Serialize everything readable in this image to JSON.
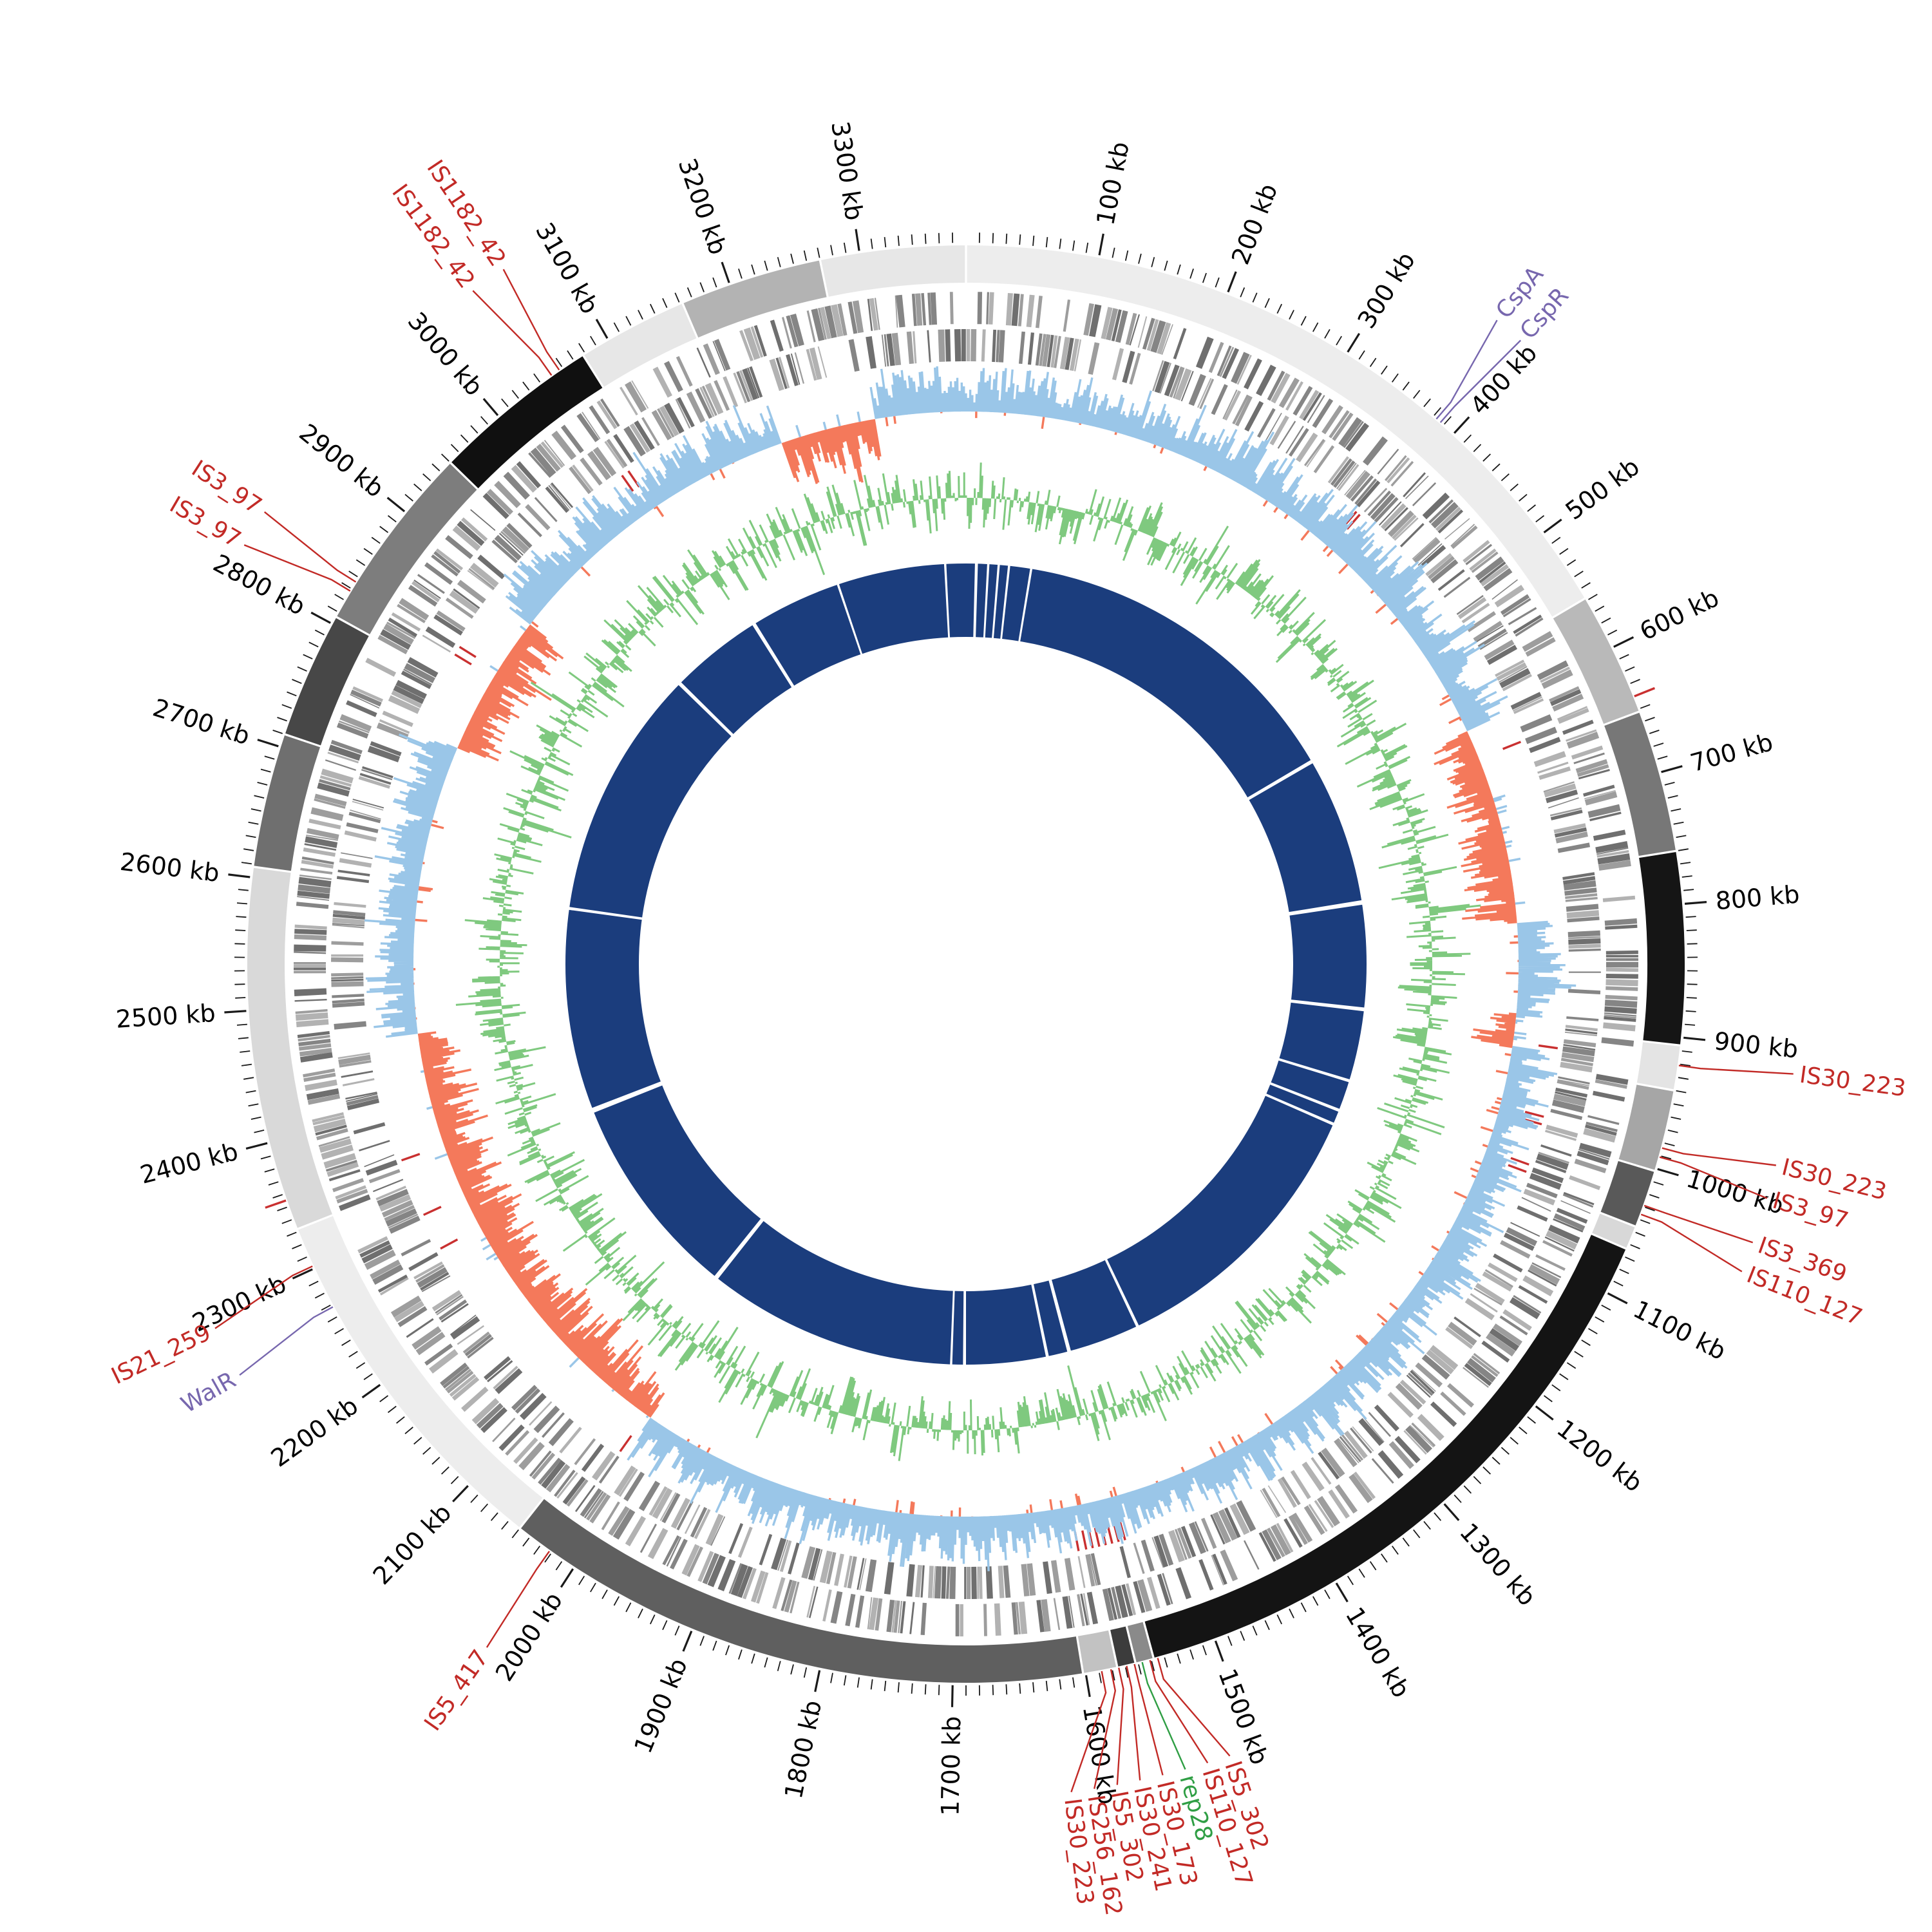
{
  "figure": {
    "title": "",
    "background": "#ffffff"
  },
  "chart_data": {
    "type": "circular-genome-plot",
    "genome_length_kb": 3380,
    "center": [
      1500,
      1497
    ],
    "ticks": {
      "minor_kb": 10,
      "major_kb": 100,
      "label_suffix": " kb",
      "color": "#1a1a1a",
      "label_color": "#000000"
    },
    "tick_labels": [
      "100 kb",
      "200 kb",
      "300 kb",
      "400 kb",
      "500 kb",
      "600 kb",
      "700 kb",
      "800 kb",
      "900 kb",
      "1000 kb",
      "1100 kb",
      "1200 kb",
      "1300 kb",
      "1400 kb",
      "1500 kb",
      "1600 kb",
      "1700 kb",
      "1800 kb",
      "1900 kb",
      "2000 kb",
      "2100 kb",
      "2200 kb",
      "2300 kb",
      "2400 kb",
      "2500 kb",
      "2600 kb",
      "2700 kb",
      "2800 kb",
      "2900 kb",
      "3000 kb",
      "3100 kb",
      "3200 kb",
      "3300 kb"
    ],
    "radii": {
      "tick_inner": 1120,
      "tick_minor_outer": 1136,
      "tick_major_outer": 1154,
      "tick_label": 1168,
      "karyotype_outer": 1116,
      "karyotype_inner": 1058,
      "gene_fwd_mid": 1019,
      "gene_rev_mid": 961,
      "gene_row_width": 50,
      "red_mark_inner": 898,
      "red_mark_outer": 928,
      "skew_baseline": 858,
      "skew_amplitude": 88,
      "gc_baseline": 724,
      "gc_amplitude": 62,
      "core_mid": 565,
      "core_width": 114,
      "leader_start": 1118,
      "leader_bend": 1152,
      "leader_end": 1296,
      "gene_label_radius": 1306
    },
    "tracks": [
      {
        "name": "contigs",
        "type": "karyotype",
        "palette": "grayscale"
      },
      {
        "name": "cds-forward",
        "type": "tile",
        "palette": "gray"
      },
      {
        "name": "cds-reverse",
        "type": "tile",
        "palette": "gray"
      },
      {
        "name": "gc-skew",
        "type": "histogram",
        "positive_color": "#9ac6e8",
        "negative_color": "#f4795b"
      },
      {
        "name": "gc-content",
        "type": "histogram",
        "color": "#7fc97f"
      },
      {
        "name": "core-alignment",
        "type": "ring",
        "color": "#1b3d7d"
      }
    ],
    "colors": {
      "skew_positive": "#9ac6e8",
      "skew_negative": "#f4795b",
      "gc_track": "#7fc97f",
      "core_ring": "#1b3d7d",
      "gene_grays": [
        "#9d9d9d",
        "#858585",
        "#b2b2b2",
        "#6f6f6f"
      ],
      "is_mark": "#c93030",
      "label_red": "#c22a26",
      "label_purple": "#7767ae",
      "label_green": "#2f9e44"
    },
    "contigs": [
      [
        0,
        558,
        "#ededed"
      ],
      [
        558,
        652,
        "#b9b9b9"
      ],
      [
        652,
        760,
        "#777777"
      ],
      [
        760,
        906,
        "#151515"
      ],
      [
        906,
        940,
        "#e4e4e4"
      ],
      [
        940,
        1002,
        "#a6a6a6"
      ],
      [
        1002,
        1046,
        "#595959"
      ],
      [
        1046,
        1064,
        "#d8d8d8"
      ],
      [
        1064,
        1548,
        "#141414"
      ],
      [
        1548,
        1562,
        "#8a8a8a"
      ],
      [
        1562,
        1576,
        "#3c3c3c"
      ],
      [
        1576,
        1602,
        "#c2c2c2"
      ],
      [
        1602,
        2050,
        "#5f5f5f"
      ],
      [
        2050,
        2332,
        "#ededed"
      ],
      [
        2332,
        2608,
        "#d9d9d9"
      ],
      [
        2608,
        2710,
        "#6f6f6f"
      ],
      [
        2710,
        2806,
        "#474747"
      ],
      [
        2806,
        2950,
        "#7d7d7d"
      ],
      [
        2950,
        3078,
        "#101010"
      ],
      [
        3078,
        3162,
        "#e7e7e7"
      ],
      [
        3162,
        3270,
        "#b3b3b3"
      ],
      [
        3270,
        3380,
        "#e7e7e7"
      ]
    ],
    "skew_negative_regions": [
      [
        612,
        806
      ],
      [
        896,
        926
      ],
      [
        2018,
        2468
      ],
      [
        2752,
        2892
      ],
      [
        3198,
        3292
      ]
    ],
    "core_gaps": [
      [
        14,
        4
      ],
      [
        30,
        3
      ],
      [
        44,
        3
      ],
      [
        58,
        3
      ],
      [
        88,
        3
      ],
      [
        560,
        5
      ],
      [
        762,
        6
      ],
      [
        906,
        5
      ],
      [
        1004,
        4
      ],
      [
        1046,
        4
      ],
      [
        1066,
        4
      ],
      [
        1452,
        4
      ],
      [
        1550,
        5
      ],
      [
        1580,
        4
      ],
      [
        1692,
        4
      ],
      [
        1710,
        3
      ],
      [
        2052,
        6
      ],
      [
        2334,
        7
      ],
      [
        2610,
        4
      ],
      [
        2952,
        5
      ],
      [
        3080,
        5
      ],
      [
        3205,
        3
      ],
      [
        3352,
        3
      ]
    ],
    "extra_is_marks": [
      640,
      2355
    ],
    "gene_labels": [
      {
        "name": "CspA",
        "pos": 383,
        "label": 371,
        "color": "purple"
      },
      {
        "name": "CspR",
        "pos": 387,
        "label": 391,
        "color": "purple"
      },
      {
        "name": "IS30_223",
        "pos": 921,
        "label": 916,
        "color": "red"
      },
      {
        "name": "IS30_223",
        "pos": 984,
        "label": 976,
        "color": "red"
      },
      {
        "name": "IS3_97",
        "pos": 991,
        "label": 998,
        "color": "red"
      },
      {
        "name": "IS3_369",
        "pos": 1029,
        "label": 1028,
        "color": "red"
      },
      {
        "name": "IS110_127",
        "pos": 1036,
        "label": 1048,
        "color": "red"
      },
      {
        "name": "IS5_302",
        "pos": 1545,
        "label": 1517,
        "color": "red"
      },
      {
        "name": "IS110_127",
        "pos": 1551,
        "label": 1532,
        "color": "red"
      },
      {
        "name": "rep28",
        "pos": 1557,
        "label": 1547,
        "color": "green"
      },
      {
        "name": "IS30_173",
        "pos": 1563,
        "label": 1562,
        "color": "red"
      },
      {
        "name": "IS30_241",
        "pos": 1569,
        "label": 1577,
        "color": "red"
      },
      {
        "name": "IS5_302",
        "pos": 1575,
        "label": 1592,
        "color": "red"
      },
      {
        "name": "IS256_162",
        "pos": 1581,
        "label": 1607,
        "color": "red"
      },
      {
        "name": "IS30_223",
        "pos": 1588,
        "label": 1622,
        "color": "red"
      },
      {
        "name": "IS5_417",
        "pos": 2022,
        "label": 2019,
        "color": "red"
      },
      {
        "name": "WalR",
        "pos": 2268,
        "label": 2258,
        "color": "purple"
      },
      {
        "name": "IS21_259",
        "pos": 2302,
        "label": 2292,
        "color": "red"
      },
      {
        "name": "IS3_97",
        "pos": 2828,
        "label": 2818,
        "color": "red"
      },
      {
        "name": "IS3_97",
        "pos": 2836,
        "label": 2843,
        "color": "red"
      },
      {
        "name": "IS1182_42",
        "pos": 3050,
        "label": 3040,
        "color": "red"
      },
      {
        "name": "IS1182_42",
        "pos": 3057,
        "label": 3064,
        "color": "red"
      }
    ]
  }
}
